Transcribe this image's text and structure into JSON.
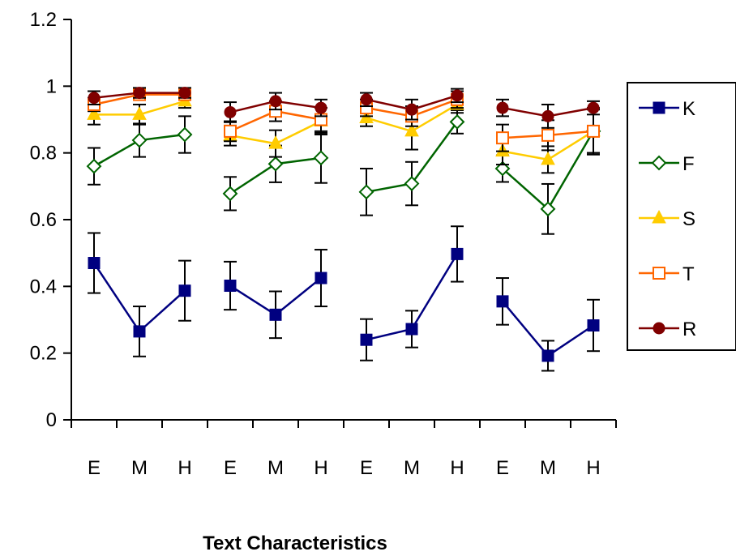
{
  "chart_data": {
    "type": "line",
    "title": "",
    "xlabel": "Text Characteristics",
    "ylabel": "",
    "ylim": [
      0,
      1.2
    ],
    "yticks": [
      "0",
      "0.2",
      "0.4",
      "0.6",
      "0.8",
      "1",
      "1.2"
    ],
    "grid": false,
    "legend_position": "right",
    "groups": 4,
    "categories": [
      "E",
      "M",
      "H",
      "E",
      "M",
      "H",
      "E",
      "M",
      "H",
      "E",
      "M",
      "H"
    ],
    "series": [
      {
        "name": "K",
        "color": "#000080",
        "marker": "square-filled",
        "values": [
          [
            0.47,
            0.265,
            0.387
          ],
          [
            0.402,
            0.315,
            0.425
          ],
          [
            0.24,
            0.272,
            0.497
          ],
          [
            0.355,
            0.192,
            0.283
          ]
        ],
        "errors": [
          [
            0.09,
            0.075,
            0.09
          ],
          [
            0.072,
            0.07,
            0.085
          ],
          [
            0.062,
            0.055,
            0.083
          ],
          [
            0.07,
            0.045,
            0.077
          ]
        ]
      },
      {
        "name": "F",
        "color": "#006400",
        "marker": "diamond-open",
        "values": [
          [
            0.76,
            0.838,
            0.855
          ],
          [
            0.678,
            0.767,
            0.785
          ],
          [
            0.683,
            0.708,
            0.893
          ],
          [
            0.753,
            0.632,
            0.865
          ]
        ],
        "errors": [
          [
            0.055,
            0.05,
            0.055
          ],
          [
            0.05,
            0.055,
            0.075
          ],
          [
            0.07,
            0.065,
            0.035
          ],
          [
            0.04,
            0.075,
            0.07
          ]
        ]
      },
      {
        "name": "S",
        "color": "#FFCC00",
        "marker": "triangle-filled",
        "values": [
          [
            0.915,
            0.915,
            0.955
          ],
          [
            0.852,
            0.828,
            0.895
          ],
          [
            0.905,
            0.865,
            0.945
          ],
          [
            0.805,
            0.78,
            0.865
          ]
        ],
        "errors": [
          [
            0.03,
            0.03,
            0.02
          ],
          [
            0.03,
            0.04,
            0.04
          ],
          [
            0.025,
            0.055,
            0.025
          ],
          [
            0.04,
            0.04,
            0.065
          ]
        ]
      },
      {
        "name": "T",
        "color": "#FF6600",
        "marker": "square-open",
        "values": [
          [
            0.945,
            0.975,
            0.975
          ],
          [
            0.865,
            0.925,
            0.9
          ],
          [
            0.935,
            0.91,
            0.96
          ],
          [
            0.845,
            0.853,
            0.865
          ]
        ],
        "errors": [
          [
            0.02,
            0.015,
            0.015
          ],
          [
            0.03,
            0.03,
            0.035
          ],
          [
            0.025,
            0.03,
            0.025
          ],
          [
            0.04,
            0.045,
            0.065
          ]
        ]
      },
      {
        "name": "R",
        "color": "#800000",
        "marker": "circle-filled",
        "values": [
          [
            0.965,
            0.98,
            0.98
          ],
          [
            0.922,
            0.955,
            0.935
          ],
          [
            0.96,
            0.93,
            0.972
          ],
          [
            0.935,
            0.91,
            0.935
          ]
        ],
        "errors": [
          [
            0.02,
            0.015,
            0.015
          ],
          [
            0.03,
            0.025,
            0.025
          ],
          [
            0.02,
            0.03,
            0.02
          ],
          [
            0.025,
            0.035,
            0.02
          ]
        ]
      }
    ]
  }
}
